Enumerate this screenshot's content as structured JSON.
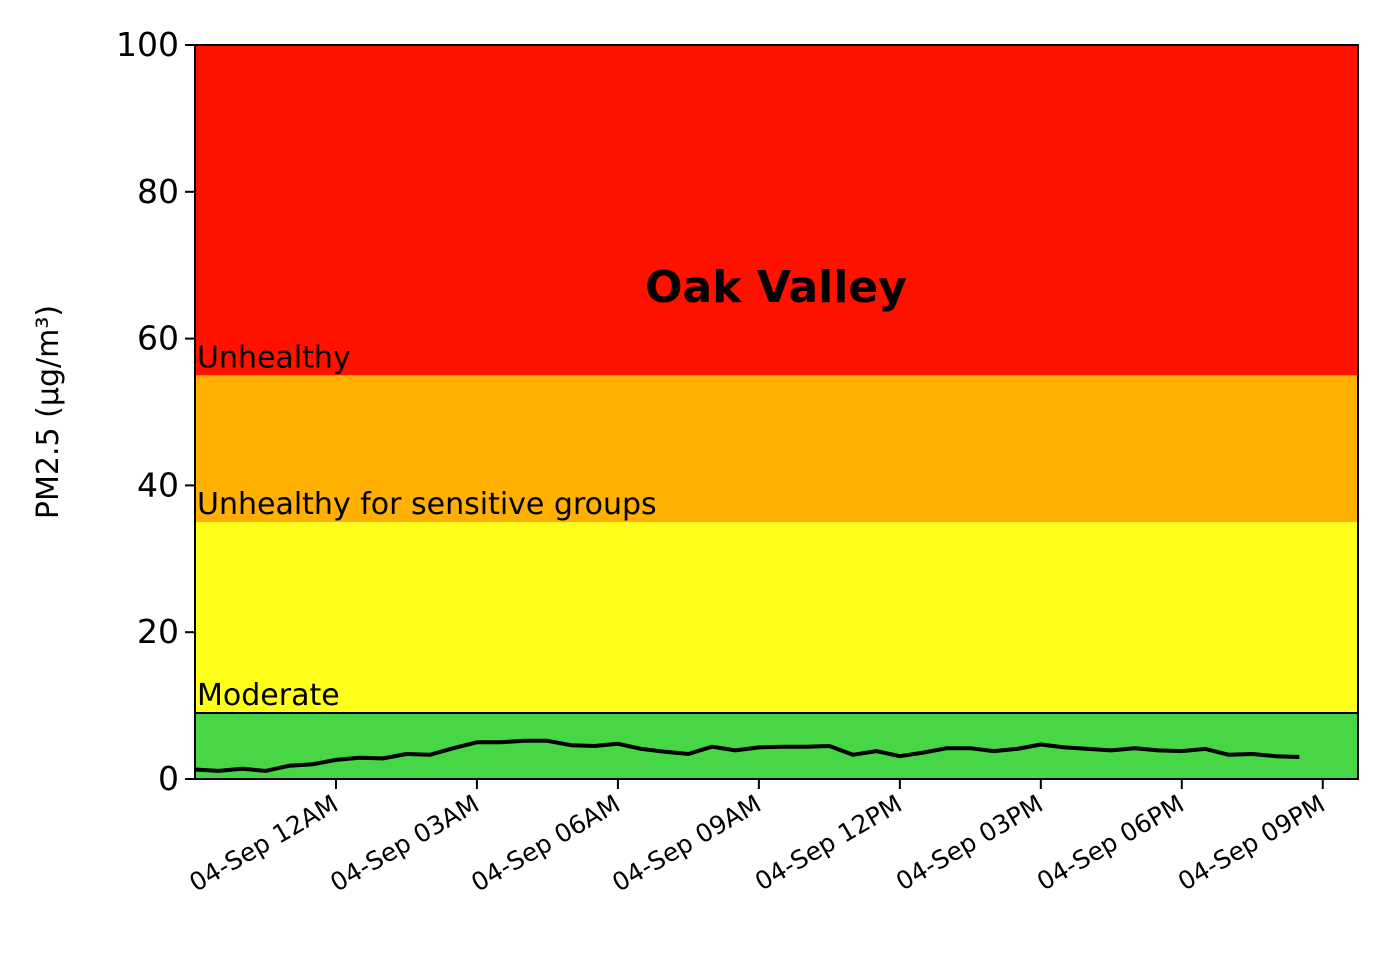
{
  "chart_data": {
    "type": "line",
    "title": "Oak Valley",
    "xlabel": "",
    "ylabel": "PM2.5 (µg/m³)",
    "ylim": [
      0,
      100
    ],
    "xlim": [
      "2023-09-03T21:00",
      "2023-09-04T21:45"
    ],
    "y_ticks": [
      0,
      20,
      40,
      60,
      80,
      100
    ],
    "x_ticks": [
      {
        "t": "2023-09-04T00:00",
        "label": "04-Sep 12AM"
      },
      {
        "t": "2023-09-04T03:00",
        "label": "04-Sep 03AM"
      },
      {
        "t": "2023-09-04T06:00",
        "label": "04-Sep 06AM"
      },
      {
        "t": "2023-09-04T09:00",
        "label": "04-Sep 09AM"
      },
      {
        "t": "2023-09-04T12:00",
        "label": "04-Sep 12PM"
      },
      {
        "t": "2023-09-04T15:00",
        "label": "04-Sep 03PM"
      },
      {
        "t": "2023-09-04T18:00",
        "label": "04-Sep 06PM"
      },
      {
        "t": "2023-09-04T21:00",
        "label": "04-Sep 09PM"
      }
    ],
    "bands": [
      {
        "from": 0,
        "to": 9,
        "color": "#46d646",
        "label": ""
      },
      {
        "from": 9,
        "to": 35,
        "color": "#ffff1a",
        "label": "Moderate"
      },
      {
        "from": 35,
        "to": 55,
        "color": "#ffb000",
        "label": "Unhealthy for sensitive groups"
      },
      {
        "from": 55,
        "to": 100,
        "color": "#ff1100",
        "label": "Unhealthy"
      }
    ],
    "series": [
      {
        "color": "#000000",
        "x": [
          "2023-09-03T21:00",
          "2023-09-03T21:30",
          "2023-09-03T22:00",
          "2023-09-03T22:30",
          "2023-09-03T23:00",
          "2023-09-03T23:30",
          "2023-09-04T00:00",
          "2023-09-04T00:30",
          "2023-09-04T01:00",
          "2023-09-04T01:30",
          "2023-09-04T02:00",
          "2023-09-04T02:30",
          "2023-09-04T03:00",
          "2023-09-04T03:30",
          "2023-09-04T04:00",
          "2023-09-04T04:30",
          "2023-09-04T05:00",
          "2023-09-04T05:30",
          "2023-09-04T06:00",
          "2023-09-04T06:30",
          "2023-09-04T07:00",
          "2023-09-04T07:30",
          "2023-09-04T08:00",
          "2023-09-04T08:30",
          "2023-09-04T09:00",
          "2023-09-04T09:30",
          "2023-09-04T10:00",
          "2023-09-04T10:30",
          "2023-09-04T11:00",
          "2023-09-04T11:30",
          "2023-09-04T12:00",
          "2023-09-04T12:30",
          "2023-09-04T13:00",
          "2023-09-04T13:30",
          "2023-09-04T14:00",
          "2023-09-04T14:30",
          "2023-09-04T15:00",
          "2023-09-04T15:30",
          "2023-09-04T16:00",
          "2023-09-04T16:30",
          "2023-09-04T17:00",
          "2023-09-04T17:30",
          "2023-09-04T18:00",
          "2023-09-04T18:30",
          "2023-09-04T19:00",
          "2023-09-04T19:30",
          "2023-09-04T20:00",
          "2023-09-04T20:30"
        ],
        "values": [
          1.3,
          1.1,
          1.4,
          1.1,
          1.8,
          2.0,
          2.6,
          2.9,
          2.8,
          3.4,
          3.3,
          4.2,
          5.0,
          5.0,
          5.2,
          5.2,
          4.6,
          4.5,
          4.8,
          4.1,
          3.7,
          3.4,
          4.4,
          3.9,
          4.3,
          4.4,
          4.4,
          4.5,
          3.3,
          3.8,
          3.1,
          3.6,
          4.2,
          4.2,
          3.8,
          4.1,
          4.7,
          4.3,
          4.1,
          3.9,
          4.2,
          3.9,
          3.8,
          4.1,
          3.3,
          3.4,
          3.1,
          3.0
        ]
      }
    ],
    "grid": false,
    "legend": "none"
  }
}
